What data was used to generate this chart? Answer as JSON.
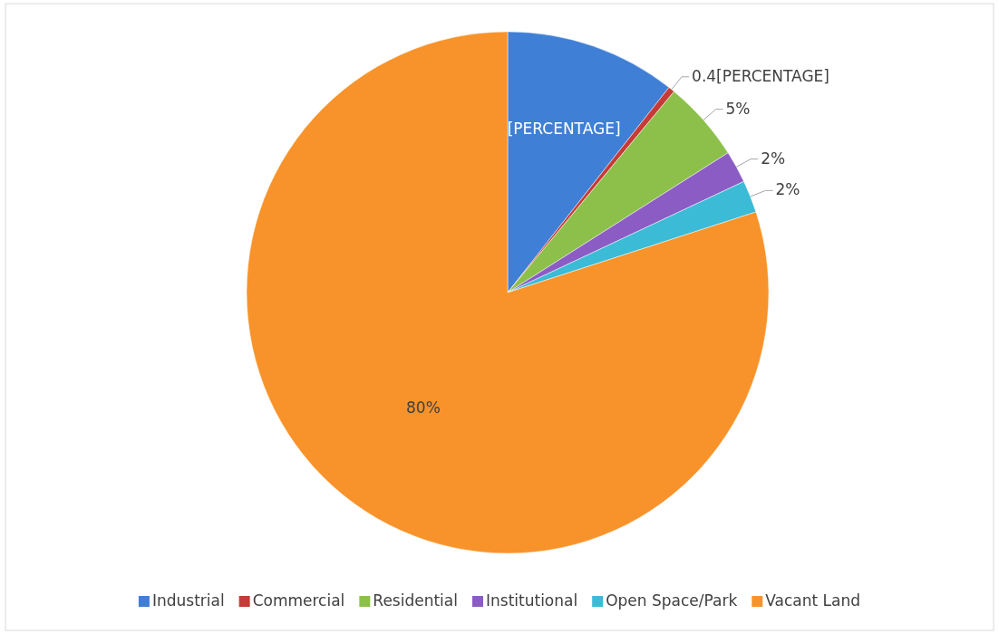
{
  "chart_data": {
    "type": "pie",
    "categories": [
      "Industrial",
      "Commercial",
      "Residential",
      "Institutional",
      "Open Space/Park",
      "Vacant Land"
    ],
    "values": [
      10.6,
      0.4,
      5,
      2,
      2,
      80
    ],
    "colors": [
      "#3f7fd6",
      "#c63b37",
      "#8cc04a",
      "#8b5cc4",
      "#3bbbd6",
      "#f7932a"
    ],
    "value_labels": [
      "[PERCENTAGE]",
      "0.4[PERCENTAGE]",
      "5%",
      "2%",
      "2%",
      "80%"
    ],
    "legend": "bottom"
  }
}
